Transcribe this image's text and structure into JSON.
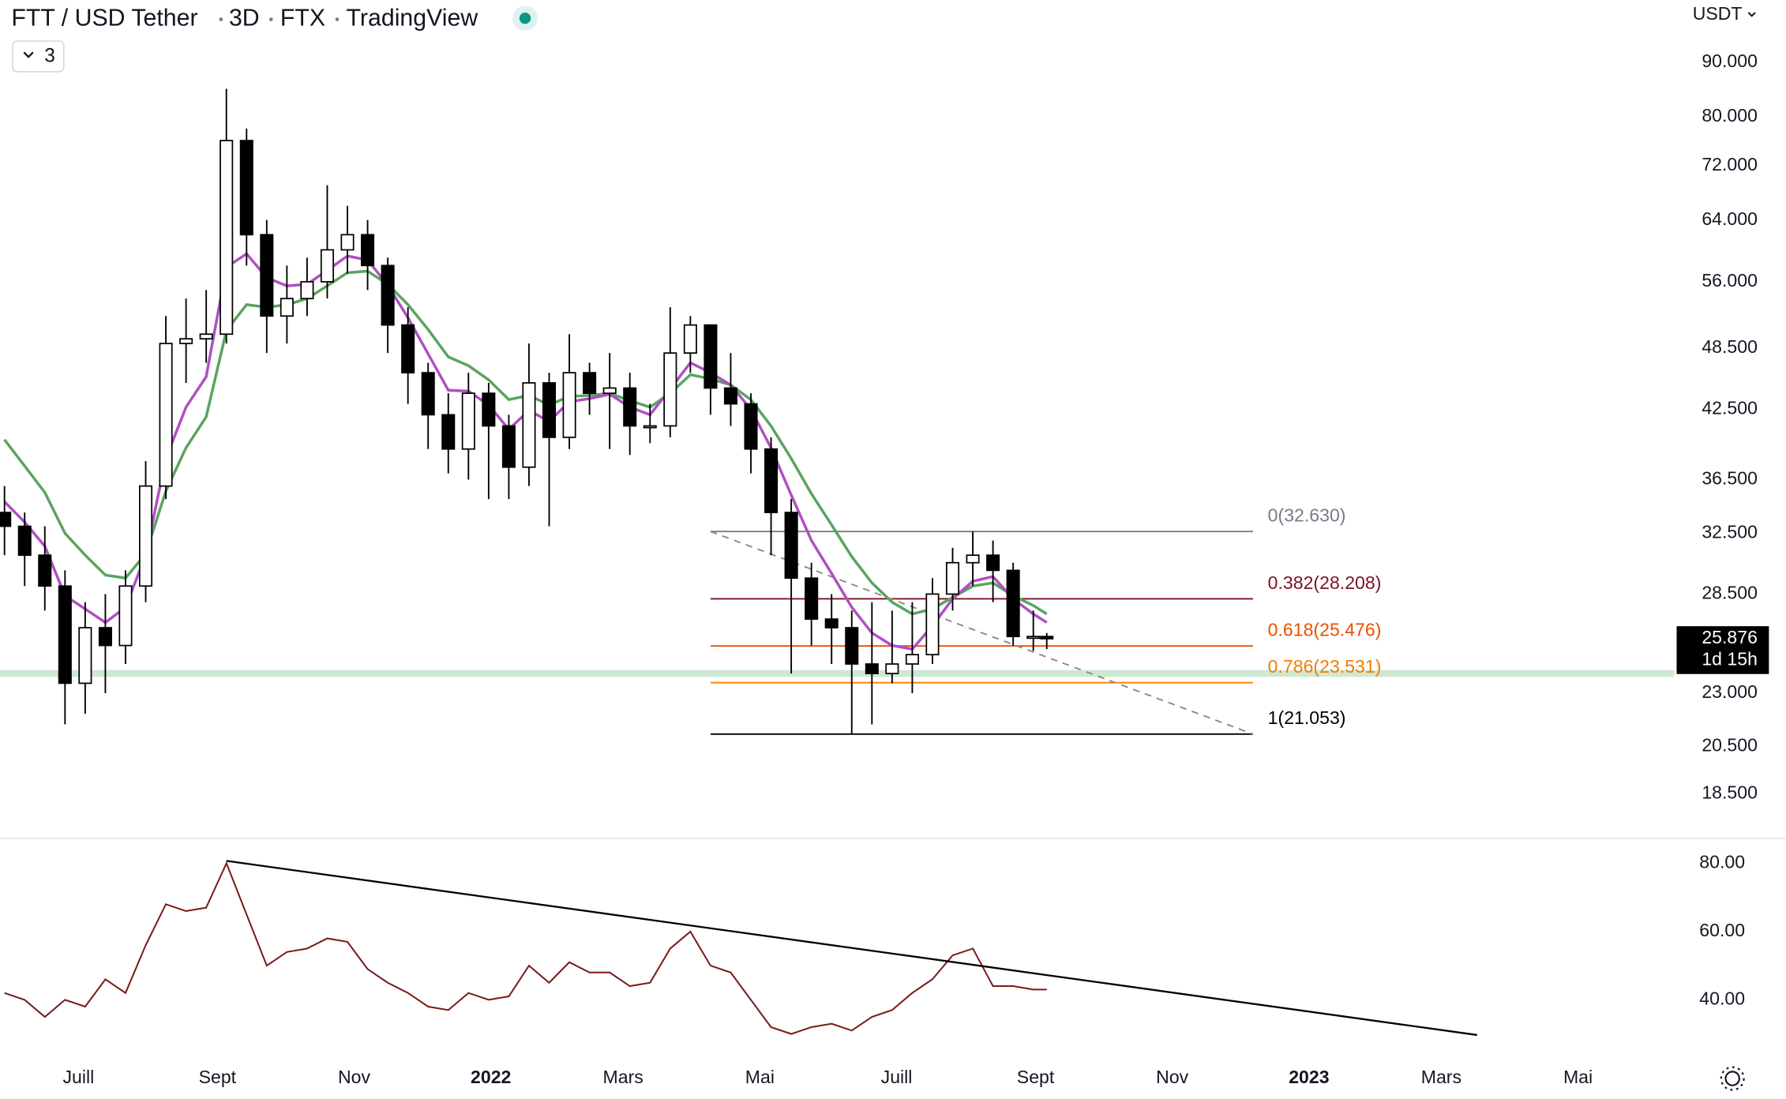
{
  "chart_data": [
    {
      "type": "candlestick",
      "title": "FTT / USD Tether",
      "interval": "3D",
      "exchange": "FTX",
      "source": "TradingView",
      "indicator_count": "3",
      "currency": "USDT",
      "log_scale": true,
      "candle_up_color": "#ffffff",
      "candle_down_color": "#000000",
      "x": [
        -33,
        -24,
        -15,
        -6,
        3,
        12,
        21,
        30,
        39,
        48,
        57,
        66,
        75,
        84,
        93,
        102,
        111,
        120,
        129,
        138,
        147,
        156,
        165,
        174,
        183,
        192,
        201,
        210,
        219,
        228,
        237,
        246,
        255,
        264,
        273,
        282,
        291,
        300,
        309,
        318,
        327,
        336,
        345,
        354,
        363,
        372,
        381,
        390,
        399,
        408,
        417,
        426,
        432
      ],
      "open": [
        34,
        33,
        31,
        29,
        23.5,
        26.5,
        25.5,
        29,
        36,
        49,
        49.5,
        50,
        76,
        62,
        52,
        54,
        56,
        60,
        62,
        58,
        51,
        46,
        42,
        39,
        44,
        41,
        37.5,
        45,
        40,
        46,
        44,
        44.5,
        41,
        41,
        48,
        51,
        44.5,
        43,
        39,
        34,
        29.5,
        27,
        26.5,
        24.5,
        24,
        24.5,
        25,
        28.5,
        30.5,
        31,
        30,
        26,
        26
      ],
      "high": [
        36,
        34,
        33,
        30,
        28,
        28.5,
        30,
        38,
        52,
        54,
        55,
        85,
        78,
        64,
        58,
        59,
        69,
        66,
        64,
        59,
        53,
        47,
        44,
        46,
        45,
        42,
        49,
        46,
        50,
        47,
        48,
        46,
        43,
        53,
        52,
        51,
        48,
        44,
        40,
        35,
        30.5,
        28.5,
        27.5,
        28,
        27.5,
        28,
        29.5,
        31.5,
        32.63,
        32,
        30.5,
        27.5,
        26.2
      ],
      "low": [
        31,
        29,
        27.5,
        21.5,
        22,
        23,
        24.5,
        28,
        35,
        45,
        47,
        49,
        58,
        48,
        49,
        52,
        54,
        57,
        55,
        48,
        43,
        39,
        37,
        36.5,
        35,
        35,
        36,
        33,
        39,
        42,
        39,
        38.5,
        39.5,
        40,
        46,
        42,
        41,
        37,
        31,
        24,
        25.5,
        24.5,
        21.053,
        21.5,
        23.5,
        23,
        24.5,
        27.5,
        29,
        28,
        25.5,
        25.2,
        25.3
      ],
      "close": [
        33,
        31,
        29,
        23.5,
        26.5,
        25.5,
        29,
        36,
        49,
        49.5,
        50,
        76,
        62,
        52,
        54,
        56,
        60,
        62,
        58,
        51,
        46,
        42,
        39,
        44,
        41,
        37.5,
        45,
        40,
        46,
        44,
        44.5,
        41,
        41,
        48,
        51,
        44.5,
        43,
        39,
        34,
        29.5,
        27,
        26.5,
        24.5,
        24,
        24.5,
        25,
        28.5,
        30.5,
        31,
        30,
        26,
        26,
        25.876
      ],
      "moving_averages": [
        {
          "color": "#b04fc2",
          "values": [
            34.8,
            33.3,
            31.6,
            28.4,
            27.6,
            26.8,
            27.7,
            31.0,
            38.2,
            42.7,
            45.6,
            57.8,
            59.5,
            56.5,
            55.5,
            55.7,
            57.4,
            59.2,
            58.7,
            55.6,
            51.8,
            47.9,
            44.3,
            44.2,
            42.9,
            40.7,
            42.4,
            41.4,
            43.2,
            43.5,
            43.9,
            42.7,
            42.0,
            44.4,
            47.0,
            46.0,
            44.8,
            42.5,
            39.1,
            35.3,
            32.0,
            29.8,
            27.7,
            26.2,
            25.5,
            25.3,
            26.6,
            28.2,
            29.3,
            29.6,
            28.2,
            27.3,
            26.8
          ]
        },
        {
          "color": "#5aa360",
          "values": [
            39.8,
            37.6,
            35.5,
            32.5,
            31.0,
            29.7,
            29.5,
            31.1,
            35.6,
            39.1,
            41.8,
            50.4,
            53.3,
            53.0,
            53.3,
            54.0,
            55.5,
            57.1,
            57.3,
            55.7,
            53.3,
            50.5,
            47.6,
            46.7,
            45.3,
            43.4,
            43.8,
            42.9,
            43.7,
            43.8,
            44.0,
            43.3,
            42.7,
            44.0,
            45.8,
            45.4,
            44.8,
            43.4,
            41.0,
            38.2,
            35.4,
            33.1,
            30.9,
            29.2,
            28.0,
            27.3,
            27.6,
            28.3,
            29.0,
            29.2,
            28.4,
            27.8,
            27.3
          ]
        }
      ],
      "xlim": [
        -35,
        712
      ],
      "xticks": [
        {
          "value": 0,
          "label": "Juill"
        },
        {
          "value": 62,
          "label": "Sept"
        },
        {
          "value": 123,
          "label": "Nov"
        },
        {
          "value": 184,
          "label": "2022"
        },
        {
          "value": 243,
          "label": "Mars"
        },
        {
          "value": 304,
          "label": "Mai"
        },
        {
          "value": 365,
          "label": "Juill"
        },
        {
          "value": 427,
          "label": "Sept"
        },
        {
          "value": 488,
          "label": "Nov"
        },
        {
          "value": 549,
          "label": "2023"
        },
        {
          "value": 608,
          "label": "Mars"
        },
        {
          "value": 669,
          "label": "Mai"
        }
      ],
      "ylim": [
        16.85,
        103
      ],
      "yticks": [
        {
          "value": 90,
          "label": "90.000"
        },
        {
          "value": 80,
          "label": "80.000"
        },
        {
          "value": 72,
          "label": "72.000"
        },
        {
          "value": 64,
          "label": "64.000"
        },
        {
          "value": 56,
          "label": "56.000"
        },
        {
          "value": 48.5,
          "label": "48.500"
        },
        {
          "value": 42.5,
          "label": "42.500"
        },
        {
          "value": 36.5,
          "label": "36.500"
        },
        {
          "value": 32.5,
          "label": "32.500"
        },
        {
          "value": 28.5,
          "label": "28.500"
        },
        {
          "value": 23,
          "label": "23.000"
        },
        {
          "value": 20.5,
          "label": "20.500"
        },
        {
          "value": 18.5,
          "label": "18.500"
        }
      ],
      "last_price": 25.876,
      "countdown": "1d 15h",
      "support_line": {
        "value": 24,
        "color": "#cfe8d2"
      },
      "trendline": {
        "x": [
          282,
          524
        ],
        "y": [
          32.63,
          21.053
        ],
        "color": "#888888"
      },
      "fib_start": 282,
      "fib_end": 524,
      "fib_levels": [
        {
          "value": 32.63,
          "label": "0(32.630)",
          "color": "#787b86"
        },
        {
          "value": 28.208,
          "label": "0.382(28.208)",
          "color": "#7a1322"
        },
        {
          "value": 25.476,
          "label": "0.618(25.476)",
          "color": "#e65100"
        },
        {
          "value": 23.531,
          "label": "0.786(23.531)",
          "color": "#f57c00"
        },
        {
          "value": 21.053,
          "label": "1(21.053)",
          "color": "#000000"
        }
      ]
    },
    {
      "type": "line",
      "color": "#7a1a1a",
      "values": [
        42,
        40,
        35,
        40,
        38,
        46,
        42,
        56,
        68,
        66,
        67,
        80,
        65,
        50,
        54,
        55,
        58,
        57,
        49,
        45,
        42,
        38,
        37,
        42,
        40,
        41,
        50,
        45,
        51,
        48,
        48,
        44,
        45,
        55,
        60,
        50,
        48,
        40,
        32,
        30,
        32,
        33,
        31,
        35,
        37,
        42,
        46,
        53,
        55,
        44,
        44,
        43,
        43
      ],
      "ylim": [
        24.3,
        87
      ],
      "yticks": [
        {
          "value": 80,
          "label": "80.00"
        },
        {
          "value": 60,
          "label": "60.00"
        },
        {
          "value": 40,
          "label": "40.00"
        }
      ],
      "trendline": {
        "x": [
          66,
          624
        ],
        "y": [
          80.7,
          29.7
        ],
        "color": "#000000"
      }
    }
  ]
}
